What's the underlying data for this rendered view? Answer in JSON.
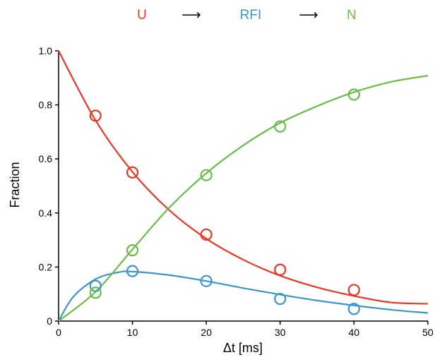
{
  "scheme": {
    "species": [
      {
        "label": "U",
        "color": "#ee3524"
      },
      {
        "label": "RFI",
        "color": "#3a97c9"
      },
      {
        "label": "N",
        "color": "#6abd45"
      }
    ],
    "arrow": "⟶"
  },
  "chart_data": {
    "type": "scatter",
    "xlabel": "Δt [ms]",
    "ylabel": "Fraction",
    "xlim": [
      0,
      50
    ],
    "ylim": [
      0,
      1.0
    ],
    "xticks": [
      0,
      10,
      20,
      30,
      40,
      50
    ],
    "xtick_labels": [
      "0",
      "10",
      "20",
      "30",
      "40",
      "50"
    ],
    "yticks": [
      0,
      0.2,
      0.4,
      0.6,
      0.8,
      1.0
    ],
    "ytick_labels": [
      "0",
      "0.2",
      "0.4",
      "0.6",
      "0.8",
      "1.0"
    ],
    "grid": false,
    "legend": "none",
    "series": [
      {
        "name": "U",
        "color": "#ee3524",
        "points": {
          "x": [
            5,
            10,
            20,
            30,
            40
          ],
          "y": [
            0.76,
            0.55,
            0.32,
            0.19,
            0.115
          ]
        },
        "curve": {
          "x": [
            0,
            5,
            10,
            15,
            20,
            25,
            30,
            35,
            40,
            45,
            50
          ],
          "y": [
            1.0,
            0.743,
            0.552,
            0.41,
            0.305,
            0.227,
            0.168,
            0.125,
            0.093,
            0.069,
            0.064
          ]
        }
      },
      {
        "name": "RFI",
        "color": "#3a97c9",
        "points": {
          "x": [
            5,
            10,
            20,
            30,
            40
          ],
          "y": [
            0.13,
            0.185,
            0.148,
            0.082,
            0.045
          ]
        },
        "curve": {
          "x": [
            0,
            2,
            5,
            8,
            10,
            15,
            20,
            25,
            30,
            35,
            40,
            45,
            50
          ],
          "y": [
            0,
            0.09,
            0.155,
            0.18,
            0.183,
            0.17,
            0.148,
            0.122,
            0.098,
            0.076,
            0.058,
            0.042,
            0.03
          ]
        }
      },
      {
        "name": "N",
        "color": "#6abd45",
        "points": {
          "x": [
            5,
            10,
            20,
            30,
            40
          ],
          "y": [
            0.105,
            0.262,
            0.54,
            0.72,
            0.838
          ]
        },
        "curve": {
          "x": [
            0,
            5,
            10,
            15,
            20,
            25,
            30,
            35,
            40,
            45,
            50
          ],
          "y": [
            0,
            0.108,
            0.265,
            0.42,
            0.547,
            0.65,
            0.733,
            0.795,
            0.847,
            0.885,
            0.908
          ]
        }
      }
    ]
  }
}
